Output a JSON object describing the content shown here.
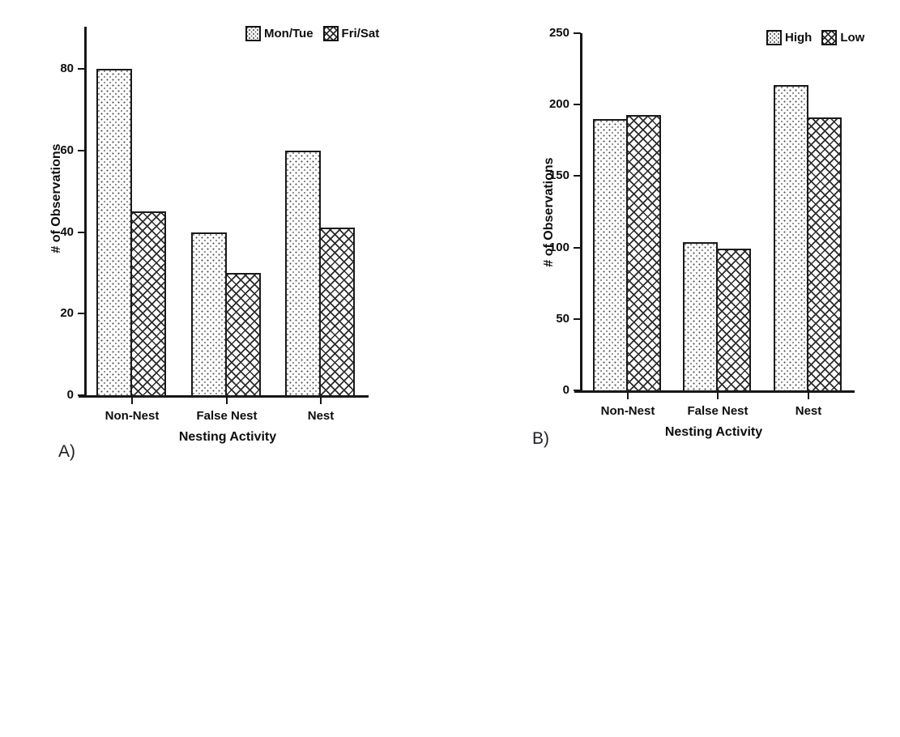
{
  "page": {
    "background": "#ffffff",
    "text_color": "#0d0d0d"
  },
  "chart_data": [
    {
      "type": "bar",
      "panel_label": "A)",
      "categories": [
        "Non-Nest",
        "False Nest",
        "Nest"
      ],
      "series": [
        {
          "name": "Mon/Tue",
          "pattern": "dots",
          "values": [
            80,
            40,
            60
          ]
        },
        {
          "name": "Fri/Sat",
          "pattern": "crosshatch",
          "values": [
            45,
            30,
            41
          ]
        }
      ],
      "xlabel": "Nesting Activity",
      "ylabel": "# of Observations",
      "ylim": [
        0,
        90
      ],
      "yticks": [
        0,
        20,
        40,
        60,
        80
      ],
      "legend_position": "top-right",
      "grid": false
    },
    {
      "type": "bar",
      "panel_label": "B)",
      "categories": [
        "Non-Nest",
        "False Nest",
        "Nest"
      ],
      "series": [
        {
          "name": "High",
          "pattern": "dots",
          "values": [
            190,
            104,
            214
          ]
        },
        {
          "name": "Low",
          "pattern": "crosshatch",
          "values": [
            193,
            99,
            191
          ]
        }
      ],
      "xlabel": "Nesting Activity",
      "ylabel": "# of Observations",
      "ylim": [
        0,
        250
      ],
      "yticks": [
        0,
        50,
        100,
        150,
        200,
        250
      ],
      "legend_position": "top-right",
      "grid": false
    }
  ]
}
